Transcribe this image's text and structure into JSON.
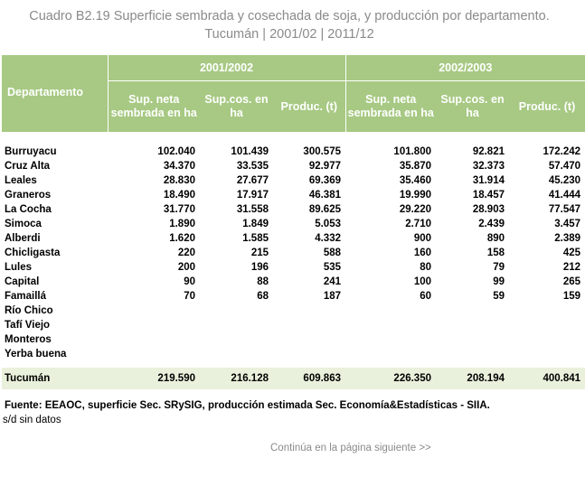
{
  "title": {
    "line1": "Cuadro B2.19 Superficie sembrada y cosechada de soja, y producción por departamento.",
    "line2": "Tucumán | 2001/02 | 2011/12"
  },
  "table": {
    "department_header": "Departamento",
    "periods": [
      "2001/2002",
      "2002/2003"
    ],
    "column_headers": [
      "Sup. neta sembrada en ha",
      "Sup.cos. en ha",
      "Produc. (t)",
      "Sup. neta sembrada en ha",
      "Sup.cos. en ha",
      "Produc. (t)"
    ],
    "rows": [
      {
        "name": "Burruyacu",
        "values": [
          "102.040",
          "101.439",
          "300.575",
          "101.800",
          "92.821",
          "172.242"
        ]
      },
      {
        "name": "Cruz Alta",
        "values": [
          "34.370",
          "33.535",
          "92.977",
          "35.870",
          "32.373",
          "57.470"
        ]
      },
      {
        "name": "Leales",
        "values": [
          "28.830",
          "27.677",
          "69.369",
          "35.460",
          "31.914",
          "45.230"
        ]
      },
      {
        "name": "Graneros",
        "values": [
          "18.490",
          "17.917",
          "46.381",
          "19.990",
          "18.457",
          "41.444"
        ]
      },
      {
        "name": "La Cocha",
        "values": [
          "31.770",
          "31.558",
          "89.625",
          "29.220",
          "28.903",
          "77.547"
        ]
      },
      {
        "name": "Simoca",
        "values": [
          "1.890",
          "1.849",
          "5.053",
          "2.710",
          "2.439",
          "3.457"
        ]
      },
      {
        "name": "Alberdi",
        "values": [
          "1.620",
          "1.585",
          "4.332",
          "900",
          "890",
          "2.389"
        ]
      },
      {
        "name": "Chicligasta",
        "values": [
          "220",
          "215",
          "588",
          "160",
          "158",
          "425"
        ]
      },
      {
        "name": "Lules",
        "values": [
          "200",
          "196",
          "535",
          "80",
          "79",
          "212"
        ]
      },
      {
        "name": "Capital",
        "values": [
          "90",
          "88",
          "241",
          "100",
          "99",
          "265"
        ]
      },
      {
        "name": "Famaillá",
        "values": [
          "70",
          "68",
          "187",
          "60",
          "59",
          "159"
        ]
      },
      {
        "name": "Río Chico",
        "values": [
          "",
          "",
          "",
          "",
          "",
          ""
        ]
      },
      {
        "name": "Tafí Viejo",
        "values": [
          "",
          "",
          "",
          "",
          "",
          ""
        ]
      },
      {
        "name": "Monteros",
        "values": [
          "",
          "",
          "",
          "",
          "",
          ""
        ]
      },
      {
        "name": "Yerba buena",
        "values": [
          "",
          "",
          "",
          "",
          "",
          ""
        ]
      }
    ],
    "total": {
      "name": "Tucumán",
      "values": [
        "219.590",
        "216.128",
        "609.863",
        "226.350",
        "208.194",
        "400.841"
      ]
    }
  },
  "source": "Fuente: EEAOC, superficie Sec. SRySIG, producción estimada  Sec. Economía&Estadísticas - SIIA.",
  "note": "s/d sin datos",
  "continue_link": "Continúa en la página siguiente >>",
  "colors": {
    "header_bg": "#a7c983",
    "total_bg": "#e9f1dc",
    "title_gray": "#8a8a8a"
  }
}
